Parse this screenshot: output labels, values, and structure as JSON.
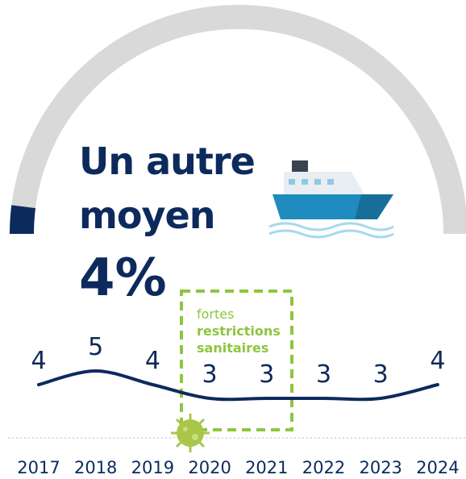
{
  "gauge": {
    "title": [
      "Un autre",
      "moyen"
    ],
    "value": 4,
    "value_label": "4%",
    "range": [
      0,
      100
    ]
  },
  "chart_data": {
    "type": "line",
    "categories": [
      "2017",
      "2018",
      "2019",
      "2020",
      "2021",
      "2022",
      "2023",
      "2024"
    ],
    "values": [
      4,
      5,
      4,
      3,
      3,
      3,
      3,
      4
    ],
    "color": "#0d2a5c",
    "ylim": [
      0,
      6
    ],
    "annotation": [
      "fortes",
      "restrictions",
      "sanitaires"
    ]
  }
}
